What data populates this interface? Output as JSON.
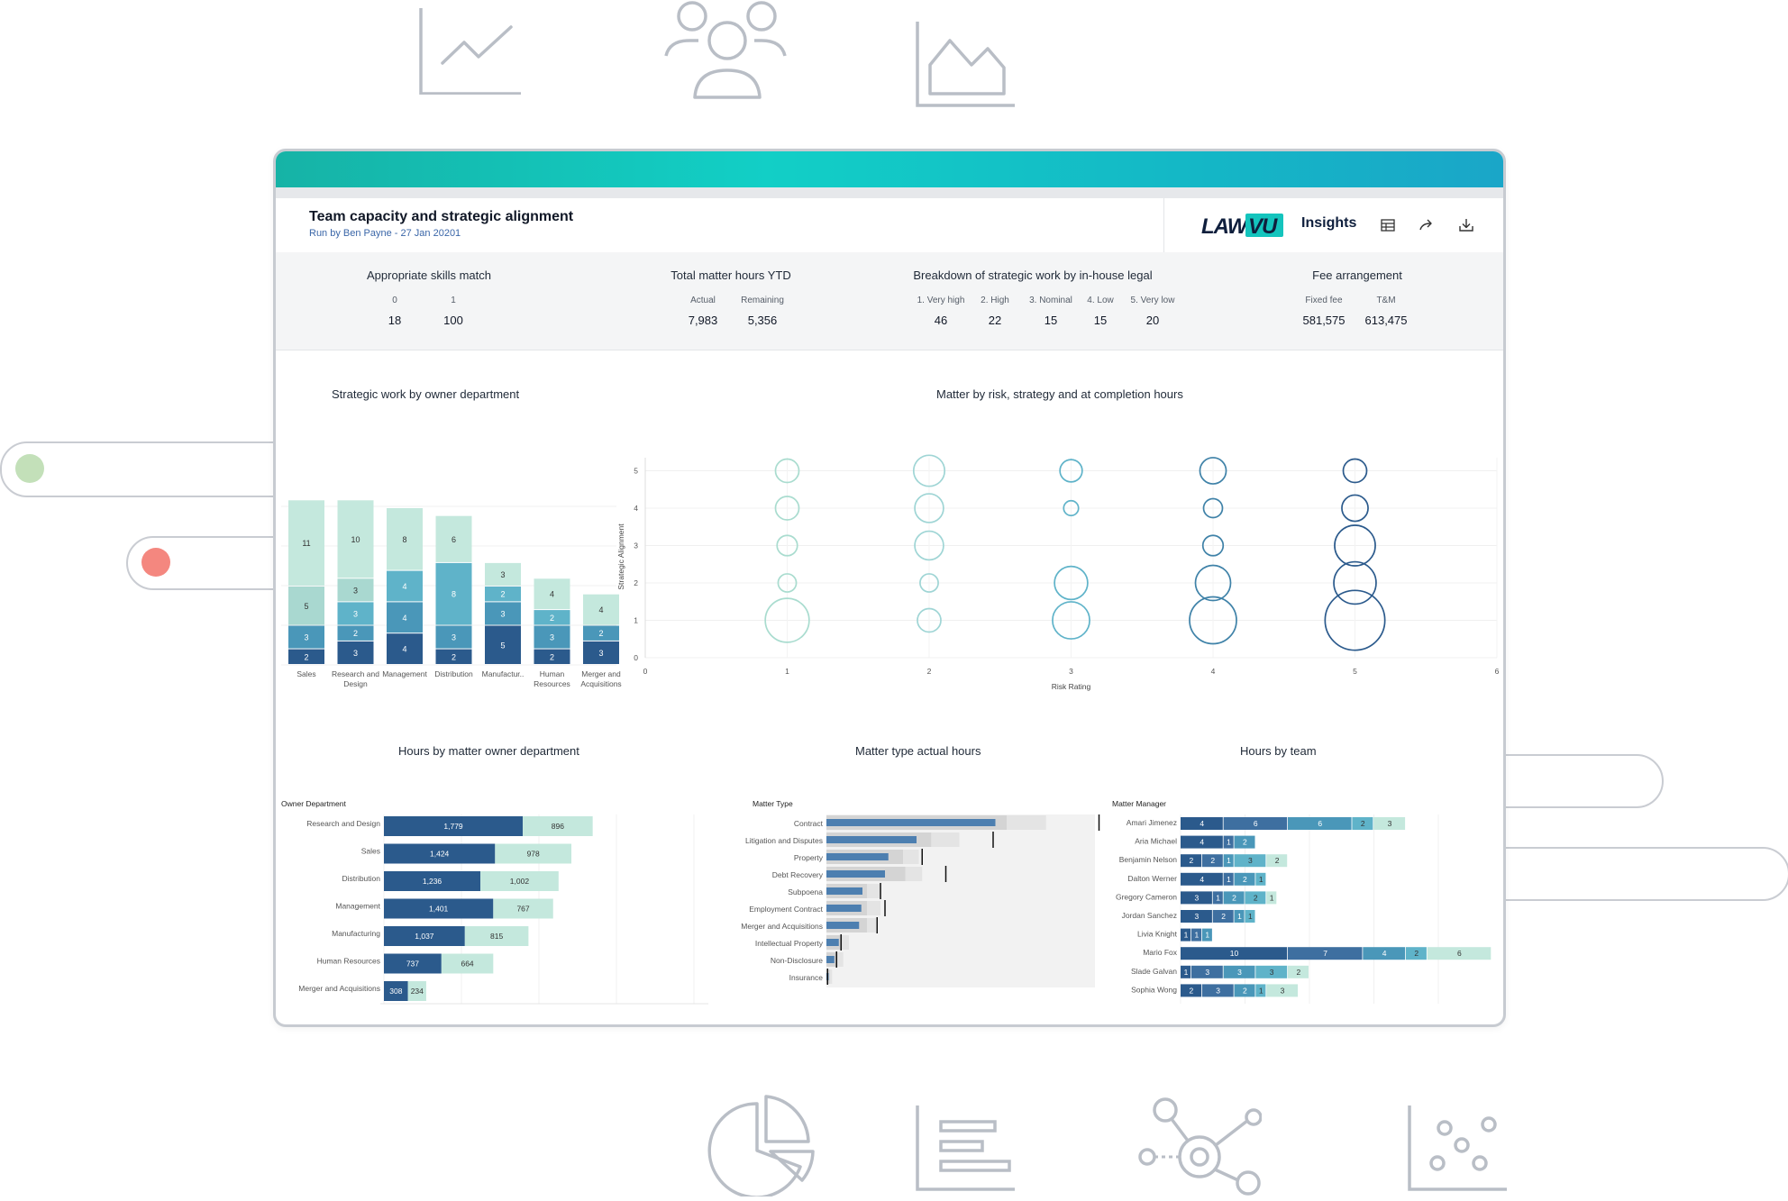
{
  "header": {
    "title": "Team capacity and strategic alignment",
    "subtitle": "Run by Ben Payne - 27 Jan 20201",
    "logo_text_left": "LAW",
    "logo_text_right": "VU",
    "app_name": "Insights",
    "actions": [
      {
        "icon": "table-icon"
      },
      {
        "icon": "share-icon"
      },
      {
        "icon": "download-icon"
      }
    ]
  },
  "kpis": {
    "skills": {
      "title": "Appropriate skills match",
      "cols": [
        {
          "label": "0",
          "value": "18"
        },
        {
          "label": "1",
          "value": "100"
        }
      ]
    },
    "hours": {
      "title": "Total matter hours YTD",
      "cols": [
        {
          "label": "Actual",
          "value": "7,983"
        },
        {
          "label": "Remaining",
          "value": "5,356"
        }
      ]
    },
    "breakdown": {
      "title": "Breakdown of strategic work by in-house legal",
      "cols": [
        {
          "label": "1. Very high",
          "value": "46"
        },
        {
          "label": "2. High",
          "value": "22"
        },
        {
          "label": "3. Nominal",
          "value": "15"
        },
        {
          "label": "4. Low",
          "value": "15"
        },
        {
          "label": "5. Very low",
          "value": "20"
        }
      ]
    },
    "fee": {
      "title": "Fee arrangement",
      "cols": [
        {
          "label": "Fixed fee",
          "value": "581,575"
        },
        {
          "label": "T&M",
          "value": "613,475"
        }
      ]
    }
  },
  "colors": {
    "dark": "#2b5a8c",
    "mid": "#4a97b9",
    "midlight": "#5fb3c9",
    "light": "#a9d8d0",
    "pale": "#c4e8dd",
    "accent": "#14c4bd"
  },
  "chart_data": [
    {
      "type": "bar",
      "title": "Strategic work by owner department",
      "stacked": true,
      "categories": [
        "Sales",
        "Research and Design",
        "Management",
        "Distribution",
        "Manufactur..",
        "Human Resources",
        "Merger and Acquisitions"
      ],
      "series": [
        {
          "values": [
            2,
            3,
            4,
            2,
            5,
            2,
            3
          ]
        },
        {
          "values": [
            3,
            2,
            4,
            3,
            3,
            3,
            2
          ]
        },
        {
          "values": [
            0,
            3,
            4,
            8,
            2,
            2,
            0
          ]
        },
        {
          "values": [
            5,
            3,
            0,
            0,
            0,
            0,
            0
          ]
        },
        {
          "values": [
            11,
            10,
            8,
            6,
            3,
            4,
            4
          ]
        }
      ]
    },
    {
      "type": "scatter",
      "title": "Matter by risk, strategy and at completion hours",
      "xlabel": "Risk Rating",
      "ylabel": "Strategic Alignment",
      "xlim": [
        0,
        6
      ],
      "ylim": [
        0,
        5
      ],
      "xticks": [
        "0",
        "1",
        "2",
        "3",
        "4",
        "5",
        "6"
      ],
      "yticks": [
        "0",
        "1",
        "2",
        "3",
        "4",
        "5"
      ],
      "points": [
        {
          "x": 1,
          "y": 5,
          "size": 2
        },
        {
          "x": 1,
          "y": 4,
          "size": 2
        },
        {
          "x": 1,
          "y": 3,
          "size": 1.5
        },
        {
          "x": 1,
          "y": 2,
          "size": 1.2
        },
        {
          "x": 1,
          "y": 1,
          "size": 7
        },
        {
          "x": 2,
          "y": 5,
          "size": 3.5
        },
        {
          "x": 2,
          "y": 4,
          "size": 3
        },
        {
          "x": 2,
          "y": 3,
          "size": 3
        },
        {
          "x": 2,
          "y": 2,
          "size": 1.2
        },
        {
          "x": 2,
          "y": 1,
          "size": 2
        },
        {
          "x": 3,
          "y": 5,
          "size": 1.8
        },
        {
          "x": 3,
          "y": 4,
          "size": 0.8
        },
        {
          "x": 3,
          "y": 2,
          "size": 4
        },
        {
          "x": 3,
          "y": 1,
          "size": 5
        },
        {
          "x": 4,
          "y": 5,
          "size": 2.5
        },
        {
          "x": 4,
          "y": 4,
          "size": 1.3
        },
        {
          "x": 4,
          "y": 3,
          "size": 1.5
        },
        {
          "x": 4,
          "y": 2,
          "size": 4.5
        },
        {
          "x": 4,
          "y": 1,
          "size": 8
        },
        {
          "x": 5,
          "y": 5,
          "size": 2
        },
        {
          "x": 5,
          "y": 4,
          "size": 2.5
        },
        {
          "x": 5,
          "y": 3,
          "size": 6
        },
        {
          "x": 5,
          "y": 2,
          "size": 6.5
        },
        {
          "x": 5,
          "y": 1,
          "size": 13
        }
      ]
    },
    {
      "type": "bar",
      "orientation": "horizontal",
      "title": "Hours by matter owner department",
      "axis_title": "Owner Department",
      "categories": [
        "Research and Design",
        "Sales",
        "Distribution",
        "Management",
        "Manufacturing",
        "Human Resources",
        "Merger and Acquisitions"
      ],
      "series": [
        {
          "values": [
            1779,
            1424,
            1236,
            1401,
            1037,
            737,
            308
          ]
        },
        {
          "values": [
            896,
            978,
            1002,
            767,
            815,
            664,
            234
          ]
        }
      ],
      "labels": [
        [
          "1,779",
          "896"
        ],
        [
          "1,424",
          "978"
        ],
        [
          "1,236",
          "1,002"
        ],
        [
          "1,401",
          "767"
        ],
        [
          "1,037",
          "815"
        ],
        [
          "737",
          "664"
        ],
        [
          "308",
          "234"
        ]
      ]
    },
    {
      "type": "bar",
      "orientation": "horizontal",
      "title": "Matter type actual hours",
      "axis_title": "Matter Type",
      "categories": [
        "Contract",
        "Litigation and Disputes",
        "Property",
        "Debt Recovery",
        "Subpoena",
        "Employment Contract",
        "Merger and Acquisitions",
        "Intellectual Property",
        "Non-Disclosure",
        "Insurance"
      ],
      "actual": [
        150,
        80,
        55,
        52,
        32,
        31,
        29,
        11,
        7,
        2
      ],
      "band_mid": [
        160,
        93,
        68,
        70,
        36,
        36,
        36,
        14,
        10,
        3
      ],
      "band_high": [
        195,
        118,
        82,
        85,
        48,
        48,
        44,
        20,
        15,
        5
      ],
      "target": [
        242,
        148,
        85,
        106,
        48,
        52,
        45,
        13,
        9,
        1
      ]
    },
    {
      "type": "bar",
      "orientation": "horizontal",
      "stacked": true,
      "title": "Hours by team",
      "axis_title": "Matter Manager",
      "categories": [
        "Amari Jimenez",
        "Aria Michael",
        "Benjamin Nelson",
        "Dalton Werner",
        "Gregory Cameron",
        "Jordan Sanchez",
        "Livia Knight",
        "Mario Fox",
        "Slade Galvan",
        "Sophia Wong"
      ],
      "rows": [
        [
          4,
          6,
          6,
          2,
          3
        ],
        [
          4,
          1,
          2
        ],
        [
          2,
          2,
          1,
          3,
          2
        ],
        [
          4,
          1,
          2,
          1
        ],
        [
          3,
          1,
          2,
          2,
          1
        ],
        [
          3,
          2,
          1,
          1
        ],
        [
          1,
          1,
          1
        ],
        [
          10,
          7,
          4,
          2,
          6
        ],
        [
          1,
          3,
          3,
          3,
          2
        ],
        [
          2,
          3,
          2,
          1,
          3
        ]
      ]
    }
  ]
}
